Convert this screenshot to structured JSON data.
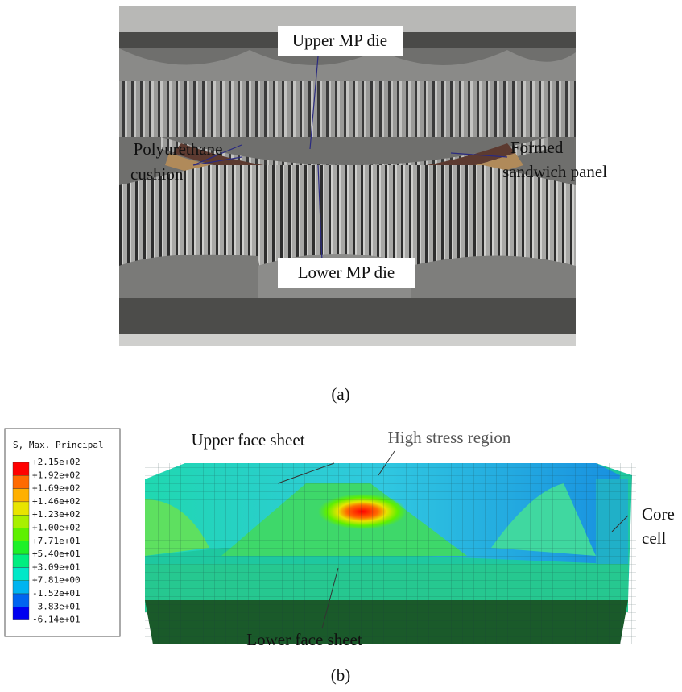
{
  "panel_a": {
    "upper_die": "Upper MP die",
    "cushion": [
      "Polyurethane",
      "cushion"
    ],
    "formed_panel": [
      "Formed",
      "sandwich panel"
    ],
    "lower_die": "Lower MP die",
    "caption": "(a)"
  },
  "panel_b": {
    "legend": {
      "title": "S, Max. Principal",
      "labels": [
        "+2.15e+02",
        "+1.92e+02",
        "+1.69e+02",
        "+1.46e+02",
        "+1.23e+02",
        "+1.00e+02",
        "+7.71e+01",
        "+5.40e+01",
        "+3.09e+01",
        "+7.81e+00",
        "-1.52e+01",
        "-3.83e+01",
        "-6.14e+01"
      ]
    },
    "upper_face_sheet": "Upper face sheet",
    "high_stress_region": "High stress region",
    "core_cell": [
      "Core",
      "cell"
    ],
    "lower_face_sheet": "Lower face sheet",
    "caption": "(b)"
  }
}
